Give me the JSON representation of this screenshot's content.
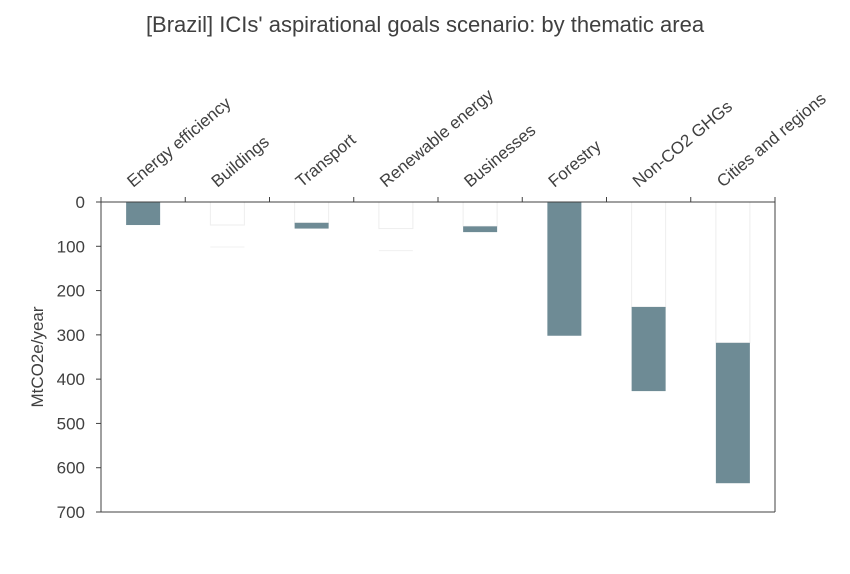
{
  "chart_data": {
    "type": "bar",
    "subtype": "waterfall",
    "title": "[Brazil] ICIs' aspirational goals scenario: by thematic area",
    "xlabel": "",
    "ylabel": "MtCO2e/year",
    "ylim": [
      0,
      700
    ],
    "y_inverted": true,
    "yticks": [
      0,
      100,
      200,
      300,
      400,
      500,
      600,
      700
    ],
    "categories": [
      "Energy efficiency",
      "Buildings",
      "Transport",
      "Renewable energy",
      "Businesses",
      "Forestry",
      "Non-CO2 GHGs",
      "Cities and regions"
    ],
    "series": [
      {
        "values": [
          {
            "start": 0,
            "end": 52
          },
          {
            "start": 52,
            "end": 52
          },
          {
            "start": 47,
            "end": 60
          },
          {
            "start": 60,
            "end": 60
          },
          {
            "start": 55,
            "end": 68
          },
          {
            "start": 0,
            "end": 302
          },
          {
            "start": 237,
            "end": 427
          },
          {
            "start": 318,
            "end": 635
          }
        ]
      }
    ],
    "bar_color": "#6e8b95",
    "grid": false,
    "legend": "none"
  }
}
